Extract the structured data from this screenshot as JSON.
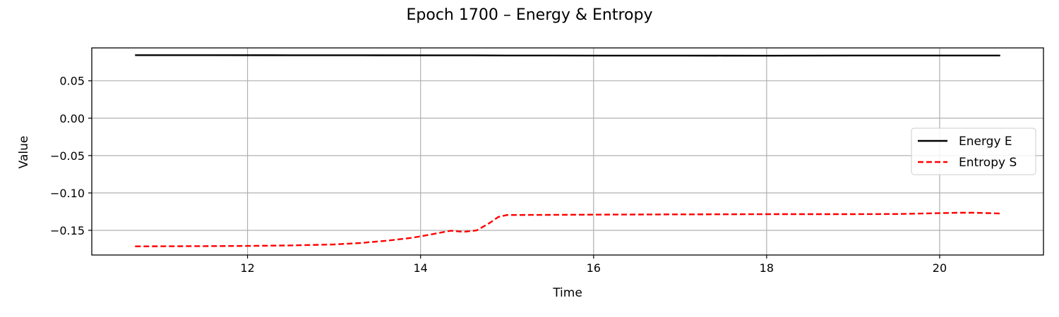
{
  "chart_data": {
    "type": "line",
    "title": "Epoch 1700 – Energy & Entropy",
    "xlabel": "Time",
    "ylabel": "Value",
    "xlim": [
      10.2,
      21.2
    ],
    "ylim": [
      -0.183,
      0.094
    ],
    "xticks": [
      12,
      14,
      16,
      18,
      20
    ],
    "xtick_labels": [
      "12",
      "14",
      "16",
      "18",
      "20"
    ],
    "yticks": [
      0.05,
      0.0,
      -0.05,
      -0.1,
      -0.15
    ],
    "ytick_labels": [
      "0.05",
      "0.00",
      "−0.05",
      "−0.10",
      "−0.15"
    ],
    "grid": true,
    "legend_position": "right",
    "series": [
      {
        "name": "Energy E",
        "color": "#000000",
        "style": "solid",
        "x": [
          10.7,
          11.5,
          12.5,
          13.5,
          14.2,
          14.6,
          15.0,
          15.5,
          16.0,
          16.5,
          17.0,
          17.5,
          18.0,
          18.5,
          19.0,
          19.5,
          20.0,
          20.7
        ],
        "y": [
          0.0843,
          0.0843,
          0.0842,
          0.0841,
          0.084,
          0.084,
          0.0838,
          0.0838,
          0.0837,
          0.0837,
          0.0837,
          0.0836,
          0.0835,
          0.0837,
          0.0838,
          0.0838,
          0.0838,
          0.0838
        ]
      },
      {
        "name": "Entropy S",
        "color": "#ff0000",
        "style": "dashed",
        "x": [
          10.7,
          11.0,
          11.5,
          12.0,
          12.5,
          13.0,
          13.3,
          13.6,
          13.9,
          14.1,
          14.35,
          14.5,
          14.65,
          14.8,
          14.9,
          15.0,
          15.5,
          16.0,
          16.5,
          17.0,
          17.5,
          18.0,
          18.5,
          19.0,
          19.5,
          20.0,
          20.2,
          20.4,
          20.7
        ],
        "y": [
          -0.1714,
          -0.1713,
          -0.1711,
          -0.1708,
          -0.1702,
          -0.1689,
          -0.167,
          -0.164,
          -0.16,
          -0.156,
          -0.1505,
          -0.152,
          -0.15,
          -0.14,
          -0.132,
          -0.1295,
          -0.1293,
          -0.129,
          -0.1288,
          -0.1286,
          -0.1285,
          -0.1284,
          -0.1284,
          -0.1284,
          -0.1282,
          -0.127,
          -0.1265,
          -0.1265,
          -0.1275
        ]
      }
    ]
  }
}
